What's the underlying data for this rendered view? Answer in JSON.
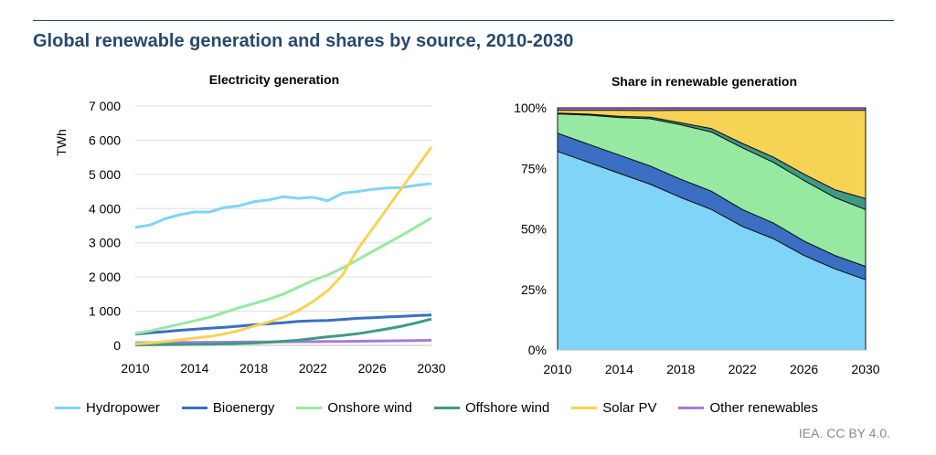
{
  "header": {
    "title": "Global renewable generation and shares by source, 2010-2030"
  },
  "colors": {
    "Hydropower": "#7fd4f8",
    "Bioenergy": "#3a6fc4",
    "Onshore wind": "#96e9a0",
    "Offshore wind": "#3e9a86",
    "Solar PV": "#f6d355",
    "Other renewables": "#a97ad8"
  },
  "chart_data": [
    {
      "type": "line",
      "title": "Electricity generation",
      "ylabel": "TWh",
      "xlabel": "",
      "ylim": [
        0,
        7000
      ],
      "yticks": [
        0,
        1000,
        2000,
        3000,
        4000,
        5000,
        6000,
        7000
      ],
      "ytick_labels": [
        "0",
        "1 000",
        "2 000",
        "3 000",
        "4 000",
        "5 000",
        "6 000",
        "7 000"
      ],
      "xlim": [
        2010,
        2030
      ],
      "xticks": [
        2010,
        2014,
        2018,
        2022,
        2026,
        2030
      ],
      "xtick_labels": [
        "2010",
        "2014",
        "2018",
        "2022",
        "2026",
        "2030"
      ],
      "grid": true,
      "x": [
        2010,
        2011,
        2012,
        2013,
        2014,
        2015,
        2016,
        2017,
        2018,
        2019,
        2020,
        2021,
        2022,
        2023,
        2024,
        2025,
        2026,
        2027,
        2028,
        2029,
        2030
      ],
      "series": [
        {
          "name": "Hydropower",
          "values": [
            3450,
            3520,
            3700,
            3820,
            3900,
            3900,
            4030,
            4080,
            4200,
            4250,
            4350,
            4300,
            4330,
            4230,
            4450,
            4500,
            4560,
            4600,
            4620,
            4680,
            4730
          ]
        },
        {
          "name": "Bioenergy",
          "values": [
            330,
            370,
            400,
            440,
            470,
            500,
            530,
            560,
            600,
            630,
            660,
            700,
            720,
            730,
            760,
            790,
            810,
            830,
            850,
            870,
            890
          ]
        },
        {
          "name": "Onshore wind",
          "values": [
            350,
            420,
            520,
            620,
            720,
            820,
            960,
            1100,
            1220,
            1350,
            1500,
            1700,
            1900,
            2060,
            2260,
            2500,
            2740,
            2980,
            3220,
            3470,
            3730
          ]
        },
        {
          "name": "Offshore wind",
          "values": [
            10,
            15,
            20,
            25,
            30,
            35,
            45,
            55,
            70,
            90,
            120,
            150,
            200,
            250,
            290,
            340,
            410,
            480,
            560,
            660,
            770
          ]
        },
        {
          "name": "Solar PV",
          "values": [
            40,
            70,
            110,
            160,
            210,
            260,
            330,
            430,
            560,
            680,
            820,
            1020,
            1280,
            1600,
            2060,
            2800,
            3400,
            4000,
            4600,
            5200,
            5800
          ]
        },
        {
          "name": "Other renewables",
          "values": [
            75,
            80,
            82,
            85,
            88,
            90,
            92,
            95,
            98,
            100,
            103,
            106,
            108,
            112,
            116,
            120,
            125,
            130,
            135,
            140,
            150
          ]
        }
      ]
    },
    {
      "type": "area",
      "title": "Share in renewable generation",
      "stacked": true,
      "ylim": [
        0,
        100
      ],
      "yticks": [
        0,
        25,
        50,
        75,
        100
      ],
      "ytick_labels": [
        "0%",
        "25%",
        "50%",
        "75%",
        "100%"
      ],
      "xlim": [
        2010,
        2030
      ],
      "xticks": [
        2010,
        2014,
        2018,
        2022,
        2026,
        2030
      ],
      "xtick_labels": [
        "2010",
        "2014",
        "2018",
        "2022",
        "2026",
        "2030"
      ],
      "grid": false,
      "x": [
        2010,
        2012,
        2014,
        2016,
        2018,
        2020,
        2022,
        2024,
        2026,
        2028,
        2030
      ],
      "series": [
        {
          "name": "Hydropower",
          "values": [
            82,
            77.5,
            73,
            68.5,
            63,
            58,
            51,
            46,
            39,
            33.5,
            29
          ]
        },
        {
          "name": "Bioenergy",
          "values": [
            7.5,
            7.5,
            7.5,
            7.5,
            7.5,
            7.5,
            7,
            6.5,
            6,
            5.5,
            5.5
          ]
        },
        {
          "name": "Onshore wind",
          "values": [
            8,
            12,
            15.5,
            19.5,
            22.5,
            24.5,
            25.5,
            25,
            25,
            24,
            23.5
          ]
        },
        {
          "name": "Offshore wind",
          "values": [
            0.3,
            0.4,
            0.5,
            0.6,
            0.8,
            1.4,
            1.8,
            2.2,
            2.6,
            3.2,
            4.5
          ]
        },
        {
          "name": "Solar PV",
          "values": [
            1.2,
            1.6,
            2.5,
            2.8,
            5.2,
            7.6,
            13.7,
            19.3,
            26.4,
            32.8,
            36.5
          ]
        },
        {
          "name": "Other renewables",
          "values": [
            1,
            1,
            1,
            1.1,
            1,
            1,
            1,
            1,
            1,
            1,
            1
          ]
        }
      ]
    }
  ],
  "legend": {
    "items": [
      {
        "label": "Hydropower",
        "key": "Hydropower"
      },
      {
        "label": "Bioenergy",
        "key": "Bioenergy"
      },
      {
        "label": "Onshore wind",
        "key": "Onshore wind"
      },
      {
        "label": "Offshore wind",
        "key": "Offshore wind"
      },
      {
        "label": "Solar PV",
        "key": "Solar PV"
      },
      {
        "label": "Other renewables",
        "key": "Other renewables"
      }
    ]
  },
  "footer": {
    "credit": "IEA. CC BY 4.0."
  }
}
